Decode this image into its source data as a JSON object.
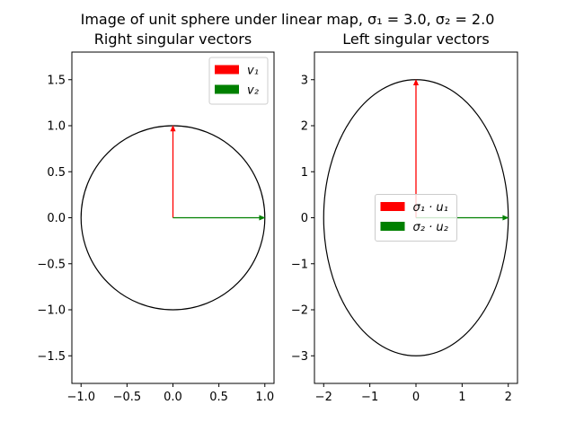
{
  "figure": {
    "title_prefix": "Image of unit sphere under linear map, ",
    "title_math": "σ₁ = 3.0, σ₂ = 2.0"
  },
  "chart_data": [
    {
      "type": "line",
      "title": "Right singular vectors",
      "xlim": [
        -1.1,
        1.1
      ],
      "ylim": [
        -1.8,
        1.8
      ],
      "xticks": [
        -1.0,
        -0.5,
        0.0,
        0.5,
        1.0
      ],
      "xtick_labels": [
        "−1.0",
        "−0.5",
        "0.0",
        "0.5",
        "1.0"
      ],
      "yticks": [
        -1.5,
        -1.0,
        -0.5,
        0.0,
        0.5,
        1.0,
        1.5
      ],
      "ytick_labels": [
        "−1.5",
        "−1.0",
        "−0.5",
        "0.0",
        "0.5",
        "1.0",
        "1.5"
      ],
      "curve": {
        "type": "ellipse",
        "center": [
          0,
          0
        ],
        "rx": 1.0,
        "ry": 1.0,
        "color": "#000000"
      },
      "series": [
        {
          "name": "v₁",
          "from": [
            0,
            0
          ],
          "to": [
            0,
            1.0
          ],
          "color": "#ff0000"
        },
        {
          "name": "v₂",
          "from": [
            0,
            0
          ],
          "to": [
            1.0,
            0
          ],
          "color": "#008000"
        }
      ],
      "grid": false,
      "legend": "upper right"
    },
    {
      "type": "line",
      "title": "Left singular vectors",
      "xlim": [
        -2.2,
        2.2
      ],
      "ylim": [
        -3.6,
        3.6
      ],
      "xticks": [
        -2,
        -1,
        0,
        1,
        2
      ],
      "xtick_labels": [
        "−2",
        "−1",
        "0",
        "1",
        "2"
      ],
      "yticks": [
        -3,
        -2,
        -1,
        0,
        1,
        2,
        3
      ],
      "ytick_labels": [
        "−3",
        "−2",
        "−1",
        "0",
        "1",
        "2",
        "3"
      ],
      "curve": {
        "type": "ellipse",
        "center": [
          0,
          0
        ],
        "rx": 2.0,
        "ry": 3.0,
        "color": "#000000"
      },
      "series": [
        {
          "name": "σ₁ · u₁",
          "from": [
            0,
            0
          ],
          "to": [
            0,
            3.0
          ],
          "color": "#ff0000"
        },
        {
          "name": "σ₂ · u₂",
          "from": [
            0,
            0
          ],
          "to": [
            2.0,
            0
          ],
          "color": "#008000"
        }
      ],
      "grid": false,
      "legend": "center"
    }
  ]
}
